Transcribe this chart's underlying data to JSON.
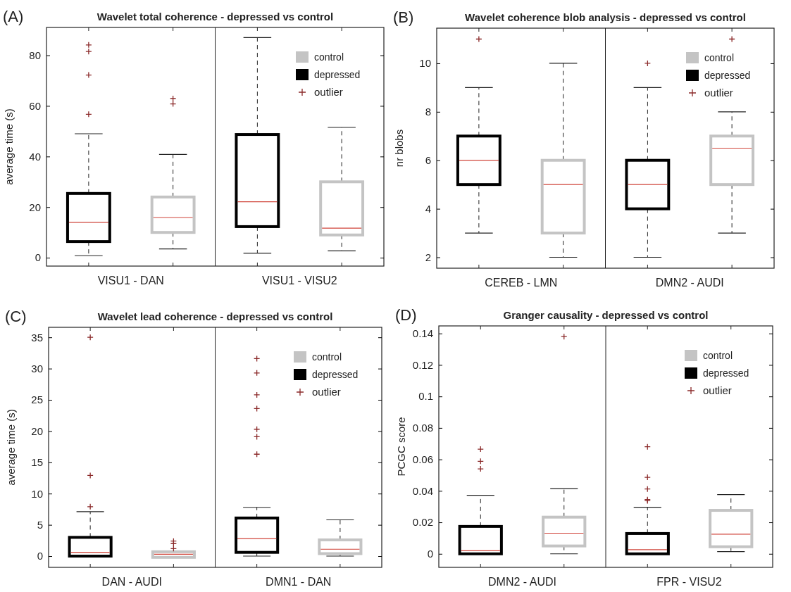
{
  "chart_data": [
    {
      "type": "box",
      "title": "Wavelet total coherence - depressed vs control",
      "ylabel": "average time (s)",
      "categories": [
        "VISU1 - DAN",
        "VISU1 - VISU2"
      ],
      "ylim": [
        -3.3,
        91
      ],
      "yticks": [
        0,
        20,
        40,
        60,
        80
      ],
      "legend": "top right",
      "marker": "cross",
      "annotations": [
        "(A)",
        "outlier"
      ],
      "series": [
        {
          "name": "depressed",
          "color": "#000000",
          "boxes": [
            {
              "low": 0.8,
              "q1": 6.4,
              "median": 14,
              "q3": 25.4,
              "high": 49,
              "outliers": [
                84.1,
                81.5,
                72.2,
                56.7
              ]
            },
            {
              "low": 1.8,
              "q1": 12.3,
              "median": 22.1,
              "q3": 48.7,
              "high": 87
            }
          ]
        },
        {
          "name": "control",
          "color": "#c4c4c4",
          "boxes": [
            {
              "low": 3.5,
              "q1": 10,
              "median": 15.9,
              "q3": 24,
              "high": 40.8,
              "outliers": [
                62.9,
                60.8
              ]
            },
            {
              "low": 2.7,
              "q1": 9,
              "median": 11.7,
              "q3": 30,
              "high": 51.5
            }
          ]
        }
      ]
    },
    {
      "type": "box",
      "title": "Wavelet coherence blob analysis - depressed vs control",
      "ylabel": "nr blobs",
      "categories": [
        "CEREB - LMN",
        "DMN2 - AUDI"
      ],
      "ylim": [
        1.55,
        11.45
      ],
      "yticks": [
        2,
        4,
        6,
        8,
        10
      ],
      "legend": "top right",
      "marker": "cross",
      "annotations": [
        "(B)",
        "outlier"
      ],
      "series": [
        {
          "name": "depressed",
          "color": "#000000",
          "boxes": [
            {
              "low": 3,
              "q1": 5,
              "median": 6,
              "q3": 7,
              "high": 9,
              "outliers": [
                11
              ]
            },
            {
              "low": 2,
              "q1": 4,
              "median": 5,
              "q3": 6,
              "high": 9,
              "outliers": [
                10
              ]
            }
          ]
        },
        {
          "name": "control",
          "color": "#c4c4c4",
          "boxes": [
            {
              "low": 2,
              "q1": 3,
              "median": 5,
              "q3": 6,
              "high": 10
            },
            {
              "low": 3,
              "q1": 5,
              "median": 6.5,
              "q3": 7,
              "high": 8,
              "outliers": [
                11
              ]
            }
          ]
        }
      ]
    },
    {
      "type": "box",
      "title": "Wavelet lead coherence - depressed vs control",
      "ylabel": "average time (s)",
      "categories": [
        "DAN - AUDI",
        "DMN1 - DAN"
      ],
      "ylim": [
        -1.8,
        36.6
      ],
      "yticks": [
        0,
        5,
        10,
        15,
        20,
        25,
        30,
        35
      ],
      "legend": "top right",
      "marker": "cross",
      "annotations": [
        "(C)",
        "outlier"
      ],
      "series": [
        {
          "name": "depressed",
          "color": "#000000",
          "boxes": [
            {
              "low": 0,
              "q1": 0,
              "median": 0.6,
              "q3": 3,
              "high": 7.1,
              "outliers": [
                7.9,
                12.9,
                35
              ]
            },
            {
              "low": 0,
              "q1": 0.6,
              "median": 2.8,
              "q3": 6.1,
              "high": 7.8,
              "outliers": [
                31.6,
                29.3,
                25.8,
                23.6,
                20.3,
                19.1,
                16.3
              ]
            }
          ]
        },
        {
          "name": "control",
          "color": "#c4c4c4",
          "boxes": [
            {
              "low": -0.2,
              "q1": -0.2,
              "median": 0.3,
              "q3": 0.7,
              "high": 0.7,
              "outliers": [
                2.4,
                2,
                1.2
              ]
            },
            {
              "low": 0,
              "q1": 0.4,
              "median": 1.1,
              "q3": 2.6,
              "high": 5.8
            }
          ]
        }
      ]
    },
    {
      "type": "box",
      "title": "Granger causality - depressed vs control",
      "ylabel": "PCGC score",
      "categories": [
        "DMN2 - AUDI",
        "FPR - VISU2"
      ],
      "ylim": [
        -0.0086,
        0.1448
      ],
      "yticks": [
        0,
        0.02,
        0.04,
        0.06,
        0.08,
        0.1,
        0.12,
        0.14
      ],
      "legend": "top right",
      "marker": "cross",
      "annotations": [
        "(D)",
        "outlier"
      ],
      "series": [
        {
          "name": "depressed",
          "color": "#000000",
          "boxes": [
            {
              "low": 0,
              "q1": 0,
              "median": 0.002,
              "q3": 0.0174,
              "high": 0.0372,
              "outliers": [
                0.0665,
                0.0588,
                0.054
              ]
            },
            {
              "low": 0,
              "q1": 0,
              "median": 0.0026,
              "q3": 0.0129,
              "high": 0.0296,
              "outliers": [
                0.068,
                0.0486,
                0.0412,
                0.0345,
                0.0337
              ]
            }
          ]
        },
        {
          "name": "control",
          "color": "#c4c4c4",
          "boxes": [
            {
              "low": 0,
              "q1": 0.005,
              "median": 0.0131,
              "q3": 0.0233,
              "high": 0.0414,
              "outliers": [
                0.138
              ]
            },
            {
              "low": 0.0014,
              "q1": 0.0045,
              "median": 0.0125,
              "q3": 0.0276,
              "high": 0.0376
            }
          ]
        }
      ]
    }
  ]
}
